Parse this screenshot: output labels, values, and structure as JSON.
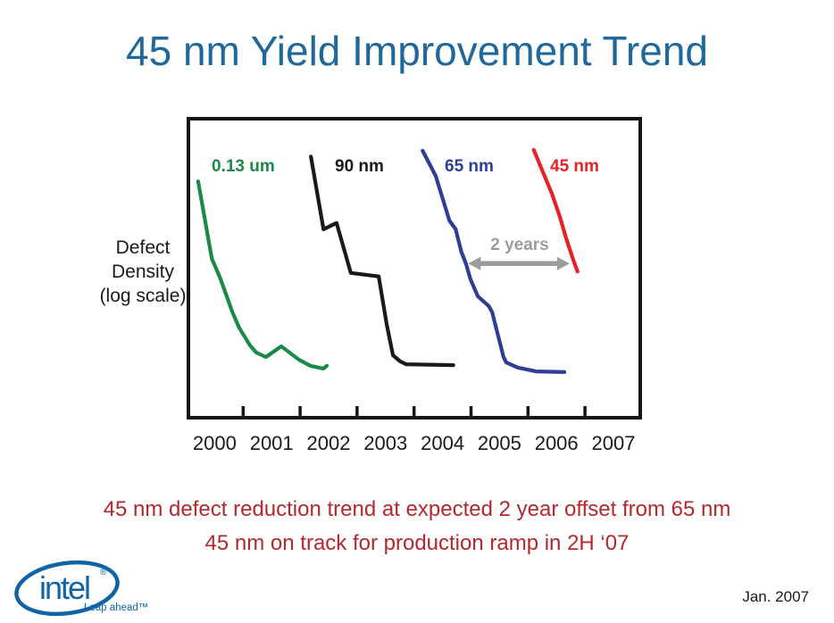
{
  "slide": {
    "title": "45 nm Yield Improvement Trend",
    "caption_line1": "45 nm defect reduction trend at expected 2 year offset from 65 nm",
    "caption_line2": "45 nm on track for production ramp in 2H ‘07",
    "footer_date": "Jan. 2007",
    "logo": {
      "brand": "intel",
      "registered_mark": "®",
      "tagline": "Leap ahead™"
    },
    "colors": {
      "title_blue": "#20689b",
      "caption_red": "#b2292e",
      "annotation_gray": "#9c9c9c",
      "axis_black": "#151515",
      "logo_blue": "#1064a6"
    }
  },
  "chart_data": {
    "type": "line",
    "title": "45 nm Yield Improvement Trend",
    "xlabel": "",
    "ylabel": "Defect Density (log scale)",
    "ylabel_lines": [
      "Defect",
      "Density",
      "(log scale)"
    ],
    "y_scale": "log",
    "y_units": "relative defect density, unlabeled log axis",
    "grid": false,
    "legend_position": "colored labels above each curve inside plot",
    "x_tick_labels": [
      "2000",
      "2001",
      "2002",
      "2003",
      "2004",
      "2005",
      "2006",
      "2007"
    ],
    "x_range_years": [
      1999.5,
      2007.5
    ],
    "y_range_relative": [
      0.9,
      115
    ],
    "series": [
      {
        "name": "0.13 um",
        "color": "#1b8a47",
        "points": [
          [
            1999.71,
            40.3
          ],
          [
            1999.95,
            11.6
          ],
          [
            2000.1,
            8.4
          ],
          [
            2000.31,
            4.9
          ],
          [
            2000.43,
            3.8
          ],
          [
            2000.62,
            2.86
          ],
          [
            2000.73,
            2.55
          ],
          [
            2000.9,
            2.37
          ],
          [
            2001.17,
            2.82
          ],
          [
            2001.48,
            2.27
          ],
          [
            2001.69,
            2.05
          ],
          [
            2001.91,
            1.97
          ],
          [
            2001.97,
            2.06
          ]
        ]
      },
      {
        "name": "90 nm",
        "color": "#1a1a1a",
        "points": [
          [
            2001.69,
            60
          ],
          [
            2001.91,
            18.6
          ],
          [
            2002.14,
            20.6
          ],
          [
            2002.39,
            9.2
          ],
          [
            2002.88,
            8.7
          ],
          [
            2003.02,
            4.0
          ],
          [
            2003.13,
            2.44
          ],
          [
            2003.25,
            2.22
          ],
          [
            2003.36,
            2.11
          ],
          [
            2004.19,
            2.08
          ]
        ]
      },
      {
        "name": "65 nm",
        "color": "#2e3e96",
        "points": [
          [
            2003.65,
            66
          ],
          [
            2003.88,
            44
          ],
          [
            2004.12,
            21.4
          ],
          [
            2004.23,
            18.6
          ],
          [
            2004.33,
            12.9
          ],
          [
            2004.41,
            10.7
          ],
          [
            2004.49,
            8.3
          ],
          [
            2004.62,
            6.3
          ],
          [
            2004.81,
            5.4
          ],
          [
            2004.87,
            4.9
          ],
          [
            2004.96,
            3.55
          ],
          [
            2005.07,
            2.37
          ],
          [
            2005.12,
            2.17
          ],
          [
            2005.32,
            2.0
          ],
          [
            2005.64,
            1.88
          ],
          [
            2006.14,
            1.86
          ]
        ]
      },
      {
        "name": "45 nm",
        "color": "#e62229",
        "points": [
          [
            2005.6,
            67
          ],
          [
            2005.76,
            47
          ],
          [
            2005.92,
            33
          ],
          [
            2006.06,
            22.7
          ],
          [
            2006.17,
            16.1
          ],
          [
            2006.29,
            11.5
          ],
          [
            2006.37,
            9.4
          ]
        ]
      }
    ],
    "annotation": {
      "label": "2 years",
      "from_year": 2004.45,
      "to_year": 2006.23,
      "at_value": 10.7
    }
  }
}
